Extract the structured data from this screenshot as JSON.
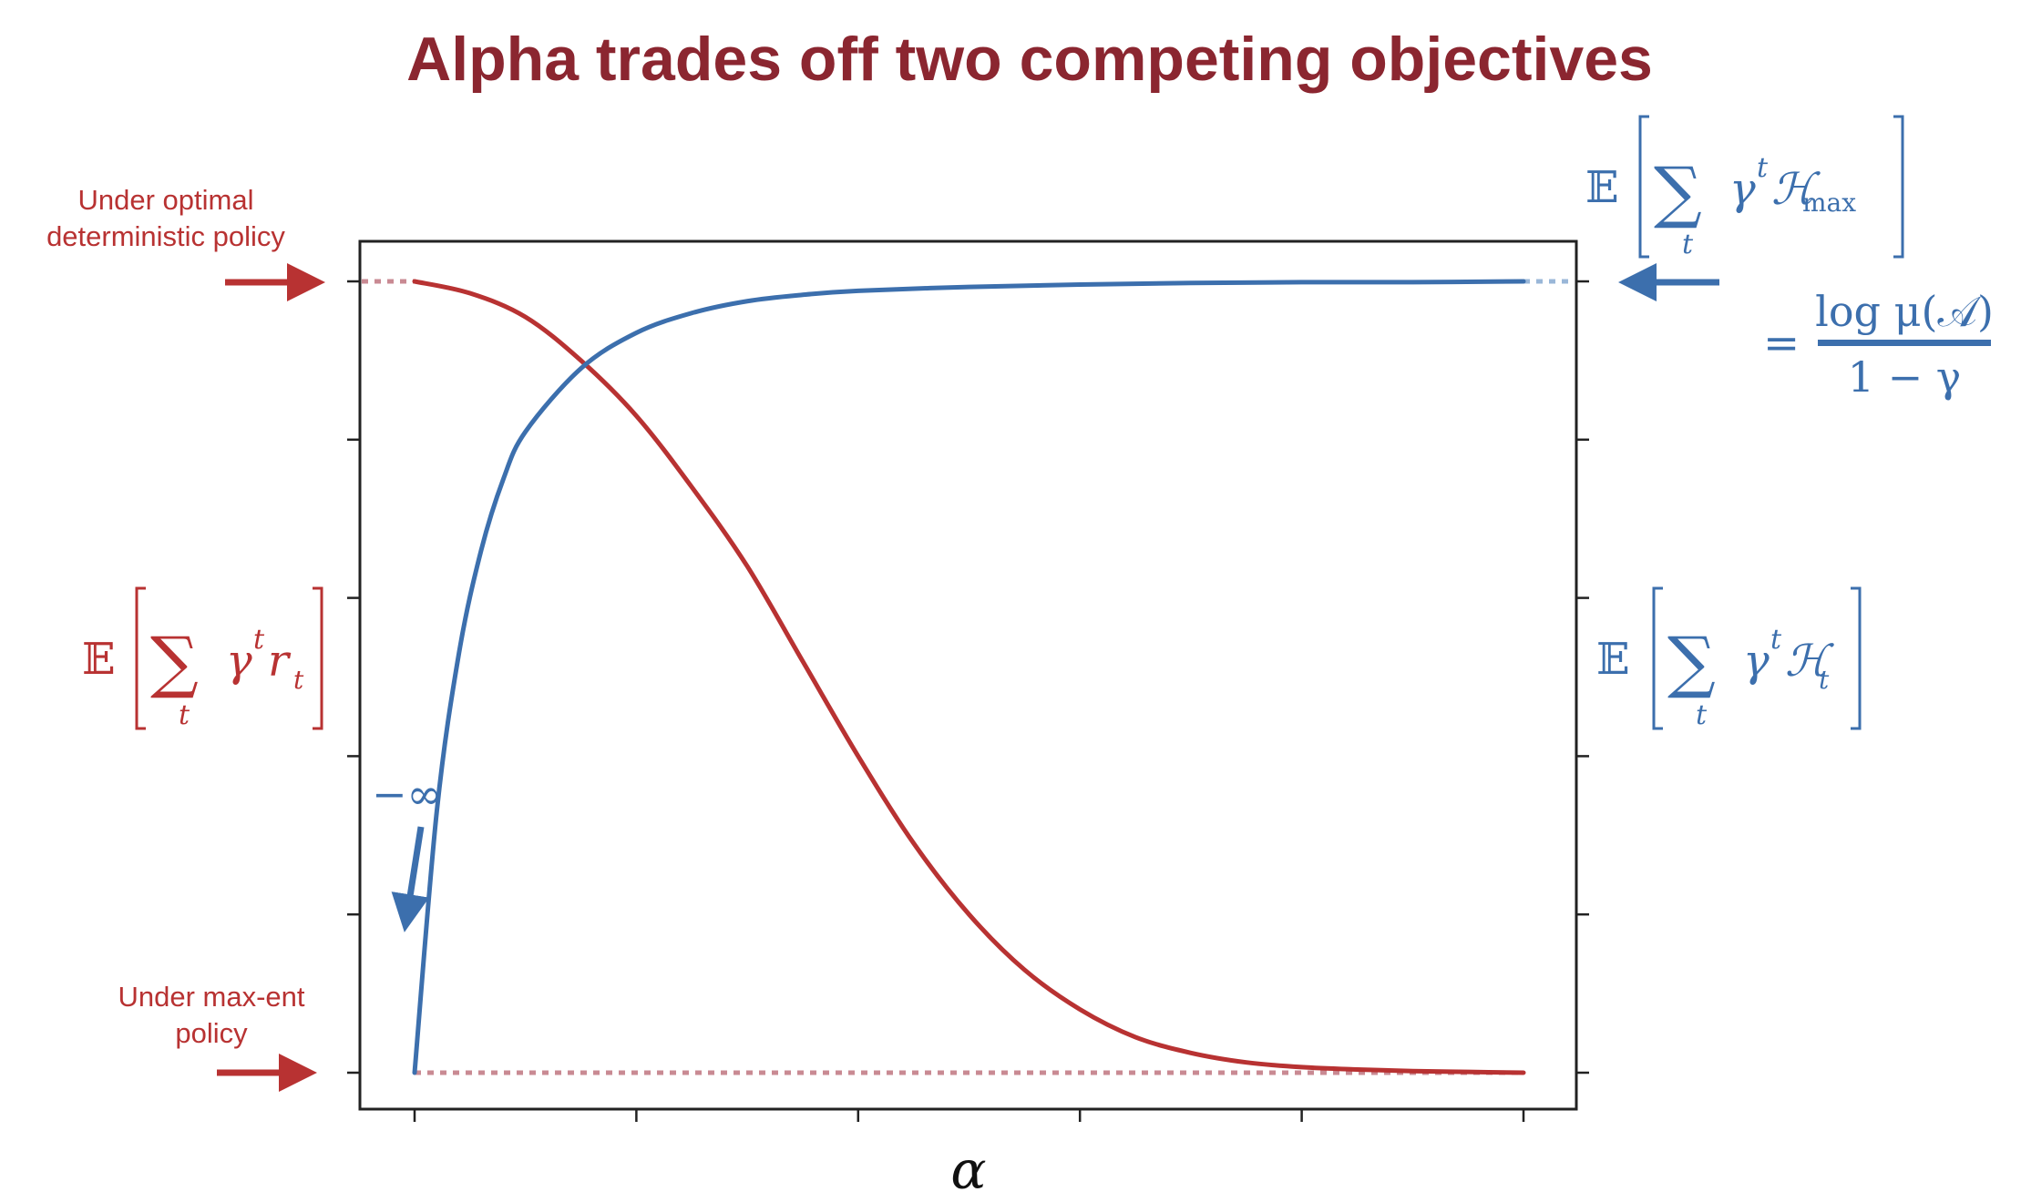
{
  "title": "Alpha trades off two competing objectives",
  "annotations": {
    "top_left": [
      "Under optimal",
      "deterministic policy"
    ],
    "bottom_left": [
      "Under max-ent",
      "policy"
    ],
    "neg_inf": "−∞"
  },
  "labels": {
    "left_axis": {
      "E": "𝔼",
      "sigma": "∑",
      "sub": "t",
      "term": "γ",
      "sup": "t",
      "term2": "r",
      "term2_sub": "t"
    },
    "right_axis": {
      "E": "𝔼",
      "sigma": "∑",
      "sub": "t",
      "term": "γ",
      "sup": "t",
      "term2": "ℋ",
      "term2_sub": "t"
    },
    "right_top": {
      "E": "𝔼",
      "sigma": "∑",
      "sub": "t",
      "term": "γ",
      "sup": "t",
      "term2": "ℋ",
      "term2_sub": "max"
    },
    "right_top_eq": {
      "eq": "=",
      "numerator": "log μ(𝒜)",
      "denominator": "1 − γ"
    },
    "x_axis": "α"
  },
  "colors": {
    "title": "#8b2630",
    "red": "#b83232",
    "blue": "#3c6fad",
    "dotted_red": "#c98a93",
    "dotted_blue": "#9ab7d8",
    "axes": "#222222"
  },
  "chart_data": {
    "type": "line",
    "xlabel": "α",
    "x_range": [
      0,
      1
    ],
    "y_range": [
      0,
      1
    ],
    "grid": false,
    "series": [
      {
        "label": "𝔼[∑ γ^t r_t]",
        "color": "red",
        "axis": "left",
        "x": [
          0.0,
          0.05,
          0.1,
          0.15,
          0.2,
          0.25,
          0.3,
          0.35,
          0.4,
          0.45,
          0.5,
          0.55,
          0.6,
          0.65,
          0.7,
          0.75,
          0.8,
          0.85,
          0.9,
          0.95,
          1.0
        ],
        "y": [
          1.0,
          0.985,
          0.955,
          0.9,
          0.83,
          0.74,
          0.64,
          0.52,
          0.4,
          0.29,
          0.2,
          0.13,
          0.08,
          0.045,
          0.025,
          0.013,
          0.007,
          0.004,
          0.002,
          0.001,
          0.0
        ]
      },
      {
        "label": "𝔼[∑ γ^t ℋ_t]",
        "color": "blue",
        "axis": "right",
        "x": [
          0.0,
          0.02,
          0.04,
          0.06,
          0.08,
          0.1,
          0.15,
          0.2,
          0.25,
          0.3,
          0.35,
          0.4,
          0.5,
          0.6,
          0.7,
          0.8,
          0.9,
          1.0
        ],
        "y": [
          0.0,
          0.33,
          0.53,
          0.66,
          0.75,
          0.81,
          0.89,
          0.935,
          0.96,
          0.975,
          0.983,
          0.988,
          0.993,
          0.996,
          0.998,
          0.999,
          0.999,
          1.0
        ]
      }
    ],
    "reference_lines": [
      {
        "y": 1.0,
        "style": "dotted",
        "color": "dotted_red",
        "side": "left"
      },
      {
        "y": 0.0,
        "style": "dotted",
        "color": "dotted_red",
        "side": "full"
      },
      {
        "y": 1.0,
        "style": "dotted",
        "color": "dotted_blue",
        "side": "right"
      }
    ],
    "x_tick_count": 6,
    "y_tick_count": 6,
    "tick_labels": []
  }
}
